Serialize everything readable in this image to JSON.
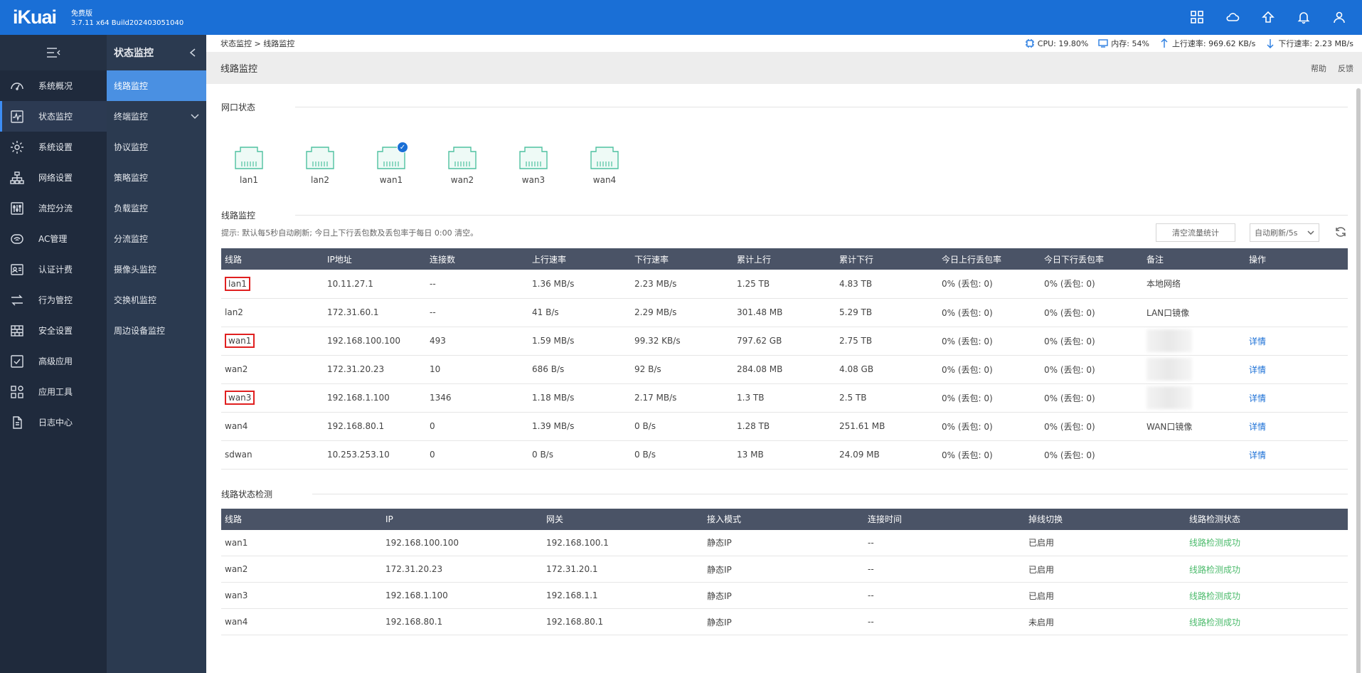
{
  "brand": {
    "logo": "iKuai",
    "edition": "免费版",
    "version": "3.7.11 x64 Build202403051040"
  },
  "top_icons": [
    "apps-icon",
    "cloud-icon",
    "upload-icon",
    "bell-icon",
    "user-icon"
  ],
  "nav_primary": [
    {
      "label": "系统概况",
      "icon": "dashboard-icon"
    },
    {
      "label": "状态监控",
      "icon": "pulse-icon",
      "active": true
    },
    {
      "label": "系统设置",
      "icon": "gear-icon"
    },
    {
      "label": "网络设置",
      "icon": "network-icon"
    },
    {
      "label": "流控分流",
      "icon": "sliders-icon"
    },
    {
      "label": "AC管理",
      "icon": "wifi-icon"
    },
    {
      "label": "认证计费",
      "icon": "id-card-icon"
    },
    {
      "label": "行为管控",
      "icon": "arrows-icon"
    },
    {
      "label": "安全设置",
      "icon": "firewall-icon"
    },
    {
      "label": "高级应用",
      "icon": "check-square-icon"
    },
    {
      "label": "应用工具",
      "icon": "tools-icon"
    },
    {
      "label": "日志中心",
      "icon": "log-icon"
    }
  ],
  "nav_secondary": {
    "title": "状态监控",
    "items": [
      {
        "label": "线路监控",
        "active": true
      },
      {
        "label": "终端监控",
        "expandable": true
      },
      {
        "label": "协议监控"
      },
      {
        "label": "策略监控"
      },
      {
        "label": "负载监控"
      },
      {
        "label": "分流监控"
      },
      {
        "label": "摄像头监控"
      },
      {
        "label": "交换机监控"
      },
      {
        "label": "周边设备监控"
      }
    ]
  },
  "breadcrumb": "状态监控 > 线路监控",
  "stats": {
    "cpu": "CPU: 19.80%",
    "mem": "内存: 54%",
    "up": "上行速率: 969.62 KB/s",
    "down": "下行速率: 2.23 MB/s"
  },
  "page_title": "线路监控",
  "title_links": {
    "help": "帮助",
    "feedback": "反馈"
  },
  "port_section_title": "网口状态",
  "ports": [
    {
      "label": "lan1",
      "checked": false
    },
    {
      "label": "lan2",
      "checked": false
    },
    {
      "label": "wan1",
      "checked": true
    },
    {
      "label": "wan2",
      "checked": false
    },
    {
      "label": "wan3",
      "checked": false
    },
    {
      "label": "wan4",
      "checked": false
    }
  ],
  "line_section_title": "线路监控",
  "tip": "提示: 默认每5秒自动刷新; 今日上下行丢包数及丢包率于每日 0:00 清空。",
  "clear_button": "清空流量统计",
  "refresh_select": "自动刷新/5s",
  "line_table": {
    "headers": [
      "线路",
      "IP地址",
      "连接数",
      "上行速率",
      "下行速率",
      "累计上行",
      "累计下行",
      "今日上行丢包率",
      "今日下行丢包率",
      "备注",
      "操作"
    ],
    "rows": [
      {
        "line": "lan1",
        "ip": "10.11.27.1",
        "conn": "--",
        "up": "1.36 MB/s",
        "down": "2.23 MB/s",
        "total_up": "1.25 TB",
        "total_down": "4.83 TB",
        "up_loss": "0% (丢包: 0)",
        "down_loss": "0% (丢包: 0)",
        "note": "本地网络",
        "action": "",
        "highlight": true
      },
      {
        "line": "lan2",
        "ip": "172.31.60.1",
        "conn": "--",
        "up": "41 B/s",
        "down": "2.29 MB/s",
        "total_up": "301.48 MB",
        "total_down": "5.29 TB",
        "up_loss": "0% (丢包: 0)",
        "down_loss": "0% (丢包: 0)",
        "note": "LAN口镜像",
        "action": "",
        "highlight": false
      },
      {
        "line": "wan1",
        "ip": "192.168.100.100",
        "conn": "493",
        "up": "1.59 MB/s",
        "down": "99.32 KB/s",
        "total_up": "797.62 GB",
        "total_down": "2.75 TB",
        "up_loss": "0% (丢包: 0)",
        "down_loss": "0% (丢包: 0)",
        "note": "",
        "blurred": true,
        "action": "详情",
        "highlight": true
      },
      {
        "line": "wan2",
        "ip": "172.31.20.23",
        "conn": "10",
        "up": "686 B/s",
        "down": "92 B/s",
        "total_up": "284.08 MB",
        "total_down": "4.08 GB",
        "up_loss": "0% (丢包: 0)",
        "down_loss": "0% (丢包: 0)",
        "note": "",
        "blurred": true,
        "action": "详情",
        "highlight": false
      },
      {
        "line": "wan3",
        "ip": "192.168.1.100",
        "conn": "1346",
        "up": "1.18 MB/s",
        "down": "2.17 MB/s",
        "total_up": "1.3 TB",
        "total_down": "2.5 TB",
        "up_loss": "0% (丢包: 0)",
        "down_loss": "0% (丢包: 0)",
        "note": "",
        "blurred": true,
        "action": "详情",
        "highlight": true
      },
      {
        "line": "wan4",
        "ip": "192.168.80.1",
        "conn": "0",
        "up": "1.39 MB/s",
        "down": "0 B/s",
        "total_up": "1.28 TB",
        "total_down": "251.61 MB",
        "up_loss": "0% (丢包: 0)",
        "down_loss": "0% (丢包: 0)",
        "note": "WAN口镜像",
        "action": "详情",
        "highlight": false
      },
      {
        "line": "sdwan",
        "ip": "10.253.253.10",
        "conn": "0",
        "up": "0 B/s",
        "down": "0 B/s",
        "total_up": "13 MB",
        "total_down": "24.09 MB",
        "up_loss": "0% (丢包: 0)",
        "down_loss": "0% (丢包: 0)",
        "note": "",
        "action": "详情",
        "highlight": false
      }
    ]
  },
  "check_section_title": "线路状态检测",
  "check_table": {
    "headers": [
      "线路",
      "IP",
      "网关",
      "接入模式",
      "连接时间",
      "掉线切换",
      "线路检测状态"
    ],
    "rows": [
      {
        "line": "wan1",
        "ip": "192.168.100.100",
        "gw": "192.168.100.1",
        "mode": "静态IP",
        "time": "--",
        "failover": "已启用",
        "status": "线路检测成功"
      },
      {
        "line": "wan2",
        "ip": "172.31.20.23",
        "gw": "172.31.20.1",
        "mode": "静态IP",
        "time": "--",
        "failover": "已启用",
        "status": "线路检测成功"
      },
      {
        "line": "wan3",
        "ip": "192.168.1.100",
        "gw": "192.168.1.1",
        "mode": "静态IP",
        "time": "--",
        "failover": "已启用",
        "status": "线路检测成功"
      },
      {
        "line": "wan4",
        "ip": "192.168.80.1",
        "gw": "192.168.80.1",
        "mode": "静态IP",
        "time": "--",
        "failover": "未启用",
        "status": "线路检测成功"
      }
    ]
  }
}
